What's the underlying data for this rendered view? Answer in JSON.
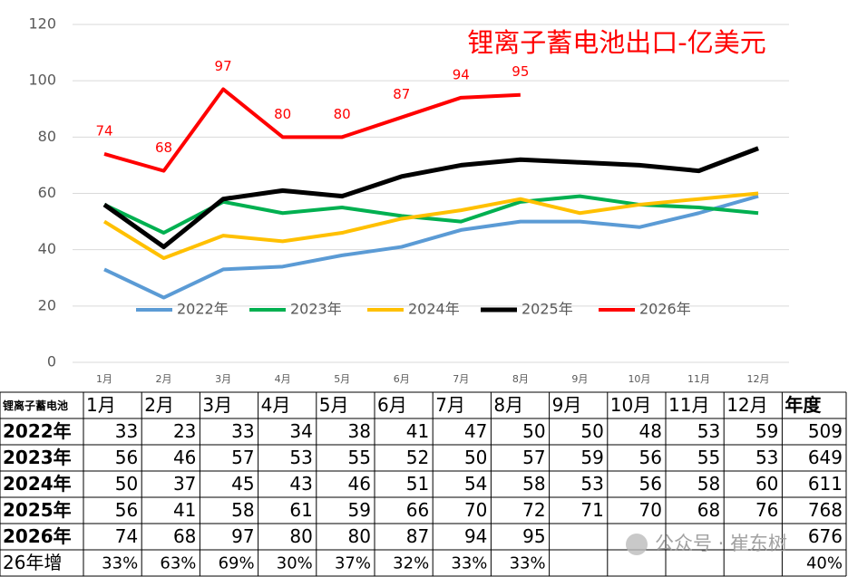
{
  "chart_data": {
    "type": "line",
    "title": "锂离子蓄电池出口-亿美元",
    "categories": [
      "1月",
      "2月",
      "3月",
      "4月",
      "5月",
      "6月",
      "7月",
      "8月",
      "9月",
      "10月",
      "11月",
      "12月"
    ],
    "ylim": [
      0,
      120
    ],
    "yticks": [
      0,
      20,
      40,
      60,
      80,
      100,
      120
    ],
    "grid": true,
    "legend": "bottom",
    "series": [
      {
        "name": "2022年",
        "color": "#5b9bd5",
        "values": [
          33,
          23,
          33,
          34,
          38,
          41,
          47,
          50,
          50,
          48,
          53,
          59
        ]
      },
      {
        "name": "2023年",
        "color": "#00b050",
        "values": [
          56,
          46,
          57,
          53,
          55,
          52,
          50,
          57,
          59,
          56,
          55,
          53
        ]
      },
      {
        "name": "2024年",
        "color": "#ffc000",
        "values": [
          50,
          37,
          45,
          43,
          46,
          51,
          54,
          58,
          53,
          56,
          58,
          60
        ]
      },
      {
        "name": "2025年",
        "color": "#000000",
        "values": [
          56,
          41,
          58,
          61,
          59,
          66,
          70,
          72,
          71,
          70,
          68,
          76
        ]
      },
      {
        "name": "2026年",
        "color": "#ff0000",
        "values": [
          74,
          68,
          97,
          80,
          80,
          87,
          94,
          95,
          null,
          null,
          null,
          null
        ]
      }
    ]
  },
  "table": {
    "corner": "锂离子蓄电池",
    "total_header": "年度",
    "totals": [
      509,
      649,
      611,
      768,
      676
    ],
    "growth_label": "26年增",
    "growth": [
      "33%",
      "63%",
      "69%",
      "30%",
      "37%",
      "32%",
      "33%",
      "33%"
    ],
    "growth_total": "40%"
  },
  "watermark": "公众号 · 崔东树"
}
